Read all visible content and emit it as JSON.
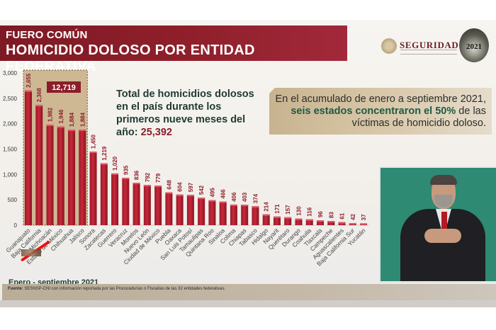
{
  "header": {
    "line1": "FUERO COMÚN",
    "line2": "HOMICIDIO DOLOSO POR ENTIDAD FEDERATIVA"
  },
  "logos": {
    "seguridad": "SEGURIDAD",
    "anniversary": "2021"
  },
  "total_text": {
    "label": "Total de homicidios dolosos en el país durante los primeros nueve meses del año:",
    "value": "25,392"
  },
  "callout": {
    "pre": "En el acumulado de enero a septiembre 2021,",
    "highlight": "seis estados concentraron el 50%",
    "post": "de las víctimas de homicidio doloso."
  },
  "footer": {
    "period": "Enero - septiembre 2021",
    "source_label": "Fuente:",
    "source_text": "SESNSP-CNI con información reportada por las Procuradurías o Fiscalías de las 32 entidades federativas."
  },
  "colors": {
    "banner": "#8f1f2b",
    "bar": "#b8202f",
    "highlight_box": "#cdb893",
    "accent_green": "#1f5a44",
    "accent_red": "#8b1c2a"
  },
  "chart_data": {
    "type": "bar",
    "title": "HOMICIDIO DOLOSO POR ENTIDAD FEDERATIVA",
    "xlabel": "",
    "ylabel": "",
    "ylim": [
      0,
      3000
    ],
    "yticks": [
      "0",
      "500",
      "1,000",
      "1,500",
      "2,000",
      "2,500",
      "3,000"
    ],
    "ytick_values": [
      0,
      500,
      1000,
      1500,
      2000,
      2500,
      3000
    ],
    "grid": false,
    "highlight": {
      "first_n": 6,
      "label": "12,719"
    },
    "categories": [
      "Guanajuato",
      "Baja California",
      "Michoacán",
      "Estado de México",
      "Chihuahua",
      "Jalisco",
      "Sonora",
      "Zacatecas",
      "Guerrero",
      "Veracruz",
      "Morelos",
      "Nuevo León",
      "Ciudad de México",
      "Puebla",
      "Oaxaca",
      "San Luis Potosí",
      "Tamaulipas",
      "Quintana Roo",
      "Sinaloa",
      "Colima",
      "Chiapas",
      "Tabasco",
      "Hidalgo",
      "Nayarit",
      "Querétaro",
      "Durango",
      "Coahuila",
      "Tlaxcala",
      "Campeche",
      "Aguascalientes",
      "Baja California Sur",
      "Yucatán"
    ],
    "values": [
      2655,
      2368,
      1982,
      1946,
      1884,
      1884,
      1450,
      1219,
      1020,
      935,
      836,
      792,
      779,
      648,
      604,
      597,
      542,
      495,
      466,
      406,
      403,
      374,
      214,
      171,
      157,
      130,
      116,
      96,
      83,
      61,
      42,
      37
    ],
    "value_labels": [
      "2,655",
      "2,368",
      "1,982",
      "1,946",
      "1,884",
      "1,884",
      "1,450",
      "1,219",
      "1,020",
      "935",
      "836",
      "792",
      "779",
      "648",
      "604",
      "597",
      "542",
      "495",
      "466",
      "406",
      "403",
      "374",
      "214",
      "171",
      "157",
      "130",
      "116",
      "96",
      "83",
      "61",
      "42",
      "37"
    ]
  }
}
